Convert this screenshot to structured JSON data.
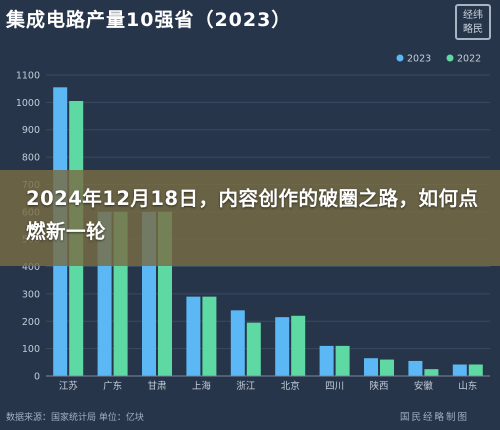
{
  "header": {
    "title": "集成电路产量10强省（2023）",
    "logo_text": "经纬 略民"
  },
  "overlay": {
    "headline": "2024年12月18日，内容创作的破圈之路，如何点燃新一轮"
  },
  "footer": {
    "source": "数据来源：国家统计局  单位：亿块",
    "watermark": "国民经略制图"
  },
  "colors": {
    "series_2023": "#5bb8f5",
    "series_2022": "#5fd9a3",
    "background": "#26354a",
    "grid": "#3a4a60"
  },
  "chart_data": {
    "type": "bar",
    "categories": [
      "江苏",
      "广东",
      "甘肃",
      "上海",
      "浙江",
      "北京",
      "四川",
      "陕西",
      "安徽",
      "山东"
    ],
    "series": [
      {
        "name": "2023",
        "values": [
          1055,
          600,
          600,
          290,
          240,
          215,
          110,
          65,
          55,
          42
        ]
      },
      {
        "name": "2022",
        "values": [
          1005,
          600,
          600,
          290,
          195,
          220,
          110,
          60,
          25,
          42
        ]
      }
    ],
    "y_ticks": [
      0,
      100,
      200,
      300,
      400,
      500,
      600,
      700,
      800,
      900,
      1000,
      1100
    ],
    "ylim": [
      0,
      1100
    ],
    "grid": true,
    "legend_position": "top-right"
  }
}
